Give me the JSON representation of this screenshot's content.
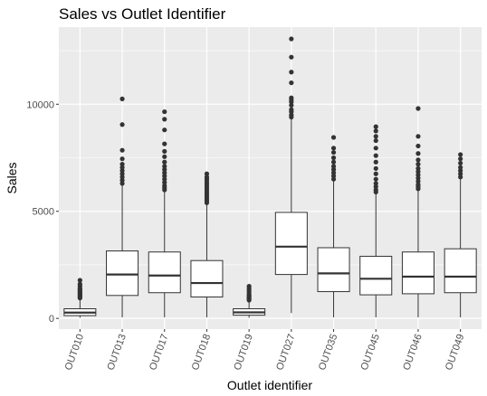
{
  "chart_data": {
    "type": "box",
    "title": "Sales vs Outlet Identifier",
    "xlabel": "Outlet identifier",
    "ylabel": "Sales",
    "yticks": [
      0,
      5000,
      10000
    ],
    "ylim": [
      -500,
      13600
    ],
    "grid": true,
    "categories": [
      "OUT010",
      "OUT013",
      "OUT017",
      "OUT018",
      "OUT019",
      "OUT027",
      "OUT035",
      "OUT045",
      "OUT046",
      "OUT049"
    ],
    "boxes": [
      {
        "category": "OUT010",
        "min": 30,
        "q1": 130,
        "median": 270,
        "q3": 450,
        "whisker_high": 900,
        "outliers": [
          950,
          1000,
          1050,
          1100,
          1150,
          1200,
          1250,
          1300,
          1350,
          1400,
          1500,
          1600,
          1780
        ]
      },
      {
        "category": "OUT013",
        "min": 50,
        "q1": 1070,
        "median": 2050,
        "q3": 3150,
        "whisker_high": 6200,
        "outliers": [
          6300,
          6450,
          6600,
          6750,
          6900,
          7050,
          7200,
          7450,
          7850,
          9050,
          10250
        ]
      },
      {
        "category": "OUT017",
        "min": 50,
        "q1": 1200,
        "median": 2000,
        "q3": 3100,
        "whisker_high": 5900,
        "outliers": [
          6000,
          6100,
          6200,
          6350,
          6500,
          6650,
          6800,
          6950,
          7100,
          7300,
          7550,
          7800,
          8150,
          8800,
          9300,
          9650
        ]
      },
      {
        "category": "OUT018",
        "min": 50,
        "q1": 1000,
        "median": 1650,
        "q3": 2700,
        "whisker_high": 5300,
        "outliers": [
          5400,
          5500,
          5600,
          5700,
          5800,
          5900,
          6000,
          6100,
          6200,
          6300,
          6400,
          6500,
          6600,
          6750
        ]
      },
      {
        "category": "OUT019",
        "min": 30,
        "q1": 150,
        "median": 280,
        "q3": 450,
        "whisker_high": 800,
        "outliers": [
          850,
          900,
          950,
          1000,
          1050,
          1100,
          1200,
          1300,
          1400,
          1500
        ]
      },
      {
        "category": "OUT027",
        "min": 250,
        "q1": 2050,
        "median": 3350,
        "q3": 4950,
        "whisker_high": 9300,
        "outliers": [
          9400,
          9500,
          9650,
          9750,
          9950,
          10100,
          10200,
          10300,
          11000,
          11500,
          12200,
          13050
        ]
      },
      {
        "category": "OUT035",
        "min": 50,
        "q1": 1250,
        "median": 2100,
        "q3": 3300,
        "whisker_high": 6400,
        "outliers": [
          6500,
          6650,
          6800,
          6950,
          7100,
          7300,
          7500,
          7750,
          7950,
          8450
        ]
      },
      {
        "category": "OUT045",
        "min": 50,
        "q1": 1100,
        "median": 1850,
        "q3": 2900,
        "whisker_high": 5800,
        "outliers": [
          5900,
          6000,
          6150,
          6300,
          6500,
          6750,
          7000,
          7300,
          7600,
          7950,
          8300,
          8500,
          8750,
          8950
        ]
      },
      {
        "category": "OUT046",
        "min": 50,
        "q1": 1150,
        "median": 1950,
        "q3": 3100,
        "whisker_high": 5950,
        "outliers": [
          6050,
          6150,
          6250,
          6400,
          6550,
          6700,
          6850,
          7000,
          7200,
          7400,
          7700,
          8050,
          8500,
          9800
        ]
      },
      {
        "category": "OUT049",
        "min": 50,
        "q1": 1200,
        "median": 1950,
        "q3": 3250,
        "whisker_high": 6500,
        "outliers": [
          6600,
          6750,
          6900,
          7050,
          7250,
          7450,
          7650
        ]
      }
    ]
  }
}
